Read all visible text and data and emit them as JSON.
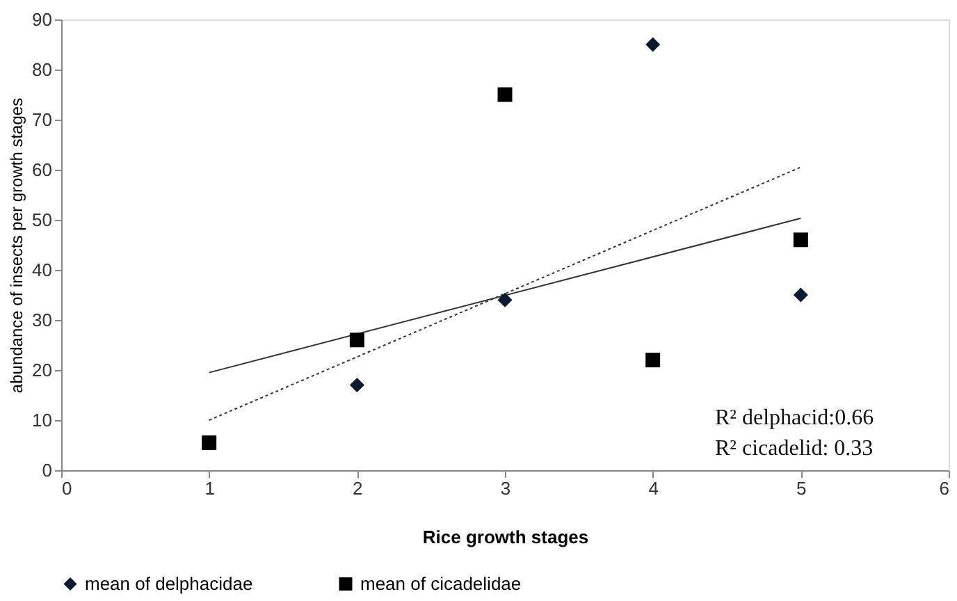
{
  "chart_data": {
    "type": "scatter",
    "xlabel": "Rice growth stages",
    "ylabel": "abundance of insects per growth stages",
    "xlim": [
      0,
      6
    ],
    "xticks": [
      0,
      1,
      2,
      3,
      4,
      5,
      6
    ],
    "ylim": [
      0,
      90
    ],
    "yticks": [
      0,
      10,
      20,
      30,
      40,
      50,
      60,
      70,
      80,
      90
    ],
    "grid": false,
    "legend": "bottom",
    "series": [
      {
        "name": "mean of delphacidae",
        "color": "#0b1a2e",
        "marker": "diamond",
        "x": [
          2,
          3,
          4,
          5
        ],
        "values": [
          17,
          34,
          85,
          35
        ]
      },
      {
        "name": "mean of cicadelidae",
        "color": "#000000",
        "marker": "square",
        "x": [
          1,
          2,
          3,
          4,
          5
        ],
        "values": [
          5.5,
          26,
          75,
          22,
          46
        ]
      },
      {
        "type": "line",
        "color": "#333333",
        "line_style": "dotted",
        "x": [
          1,
          5
        ],
        "values": [
          10,
          60.5
        ]
      },
      {
        "type": "line",
        "color": "#333333",
        "line_style": "solid",
        "x": [
          1,
          5
        ],
        "values": [
          19.5,
          50.3
        ]
      }
    ],
    "annotations": [
      "R² delphacid:0.66",
      "R² cicadelid: 0.33"
    ]
  }
}
